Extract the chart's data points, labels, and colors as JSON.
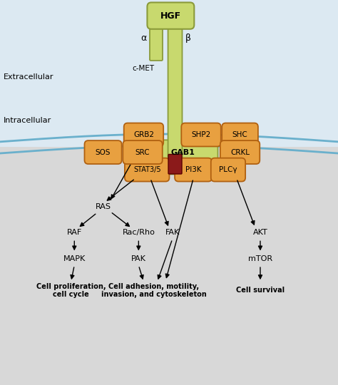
{
  "background_color": "#d8d8d8",
  "extracellular_bg": "#dce9f2",
  "membrane_color": "#6ab0cc",
  "hgf_color": "#c8d96e",
  "hgf_border": "#8a9a3a",
  "red_domain_color": "#8b1a1a",
  "gab1_color": "#c8d96e",
  "gab1_border": "#8a9a3a",
  "adapter_color": "#e8a040",
  "adapter_border": "#b06010",
  "alpha_label": "α",
  "beta_label": "β",
  "cmet_label": "c-MET",
  "extracellular_label": "Extracellular",
  "intracellular_label": "Intracellular",
  "fig_width": 4.74,
  "fig_height": 5.4,
  "dpi": 100
}
